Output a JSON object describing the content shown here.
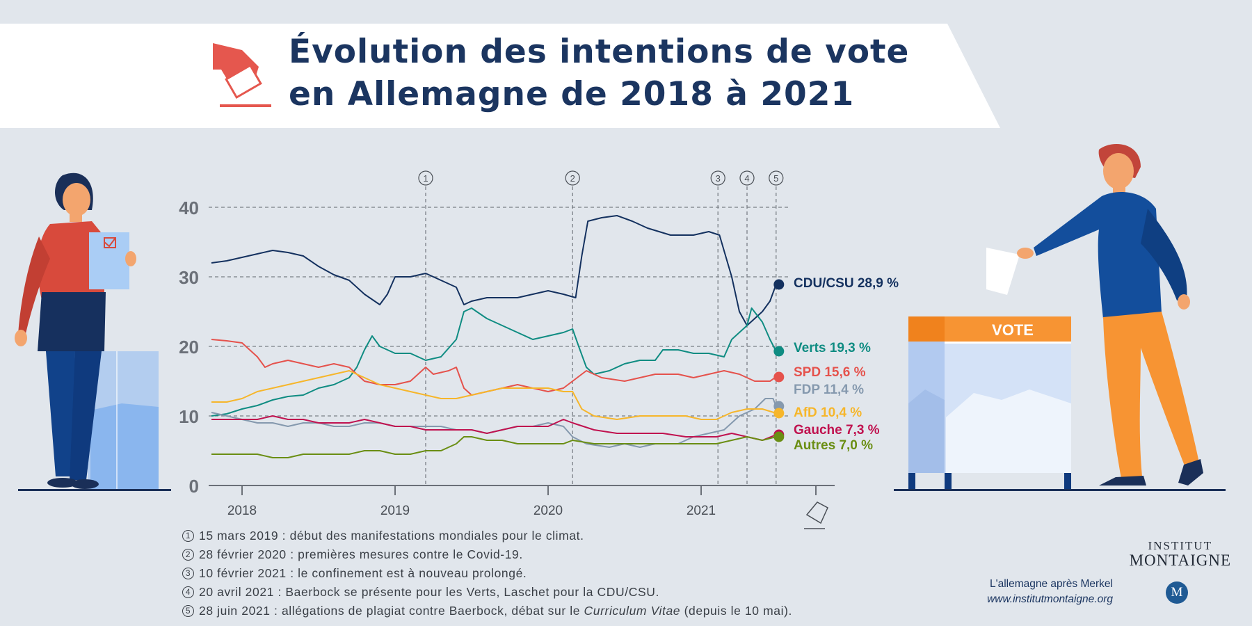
{
  "title_line1": "Évolution des intentions de vote",
  "title_line2": "en Allemagne de 2018 à 2021",
  "chart_data": {
    "type": "line",
    "x_unit": "year (decimal)",
    "xlim": [
      2017.8,
      2021.75
    ],
    "ylim": [
      0,
      42
    ],
    "x_ticks": [
      2018,
      2019,
      2020,
      2021
    ],
    "y_ticks": [
      0,
      10,
      20,
      30,
      40
    ],
    "gridlines_y": [
      10,
      20,
      30,
      40
    ],
    "events": [
      {
        "num": "1",
        "x": 2019.2
      },
      {
        "num": "2",
        "x": 2020.16
      },
      {
        "num": "3",
        "x": 2021.11
      },
      {
        "num": "4",
        "x": 2021.3
      },
      {
        "num": "5",
        "x": 2021.49
      }
    ],
    "series": [
      {
        "name": "CDU/CSU",
        "value_label": "28,9 %",
        "color": "#14315f",
        "points": [
          [
            2017.8,
            32
          ],
          [
            2017.9,
            32.3
          ],
          [
            2018.0,
            32.8
          ],
          [
            2018.1,
            33.3
          ],
          [
            2018.2,
            33.8
          ],
          [
            2018.3,
            33.5
          ],
          [
            2018.4,
            33
          ],
          [
            2018.5,
            31.5
          ],
          [
            2018.6,
            30.3
          ],
          [
            2018.7,
            29.5
          ],
          [
            2018.8,
            27.5
          ],
          [
            2018.9,
            26
          ],
          [
            2018.95,
            27.5
          ],
          [
            2019.0,
            30
          ],
          [
            2019.1,
            30
          ],
          [
            2019.2,
            30.5
          ],
          [
            2019.3,
            29.5
          ],
          [
            2019.4,
            28.5
          ],
          [
            2019.45,
            26
          ],
          [
            2019.5,
            26.5
          ],
          [
            2019.6,
            27
          ],
          [
            2019.7,
            27
          ],
          [
            2019.8,
            27
          ],
          [
            2019.9,
            27.5
          ],
          [
            2020.0,
            28
          ],
          [
            2020.1,
            27.5
          ],
          [
            2020.18,
            27
          ],
          [
            2020.22,
            33
          ],
          [
            2020.26,
            38
          ],
          [
            2020.35,
            38.5
          ],
          [
            2020.45,
            38.8
          ],
          [
            2020.55,
            38
          ],
          [
            2020.65,
            37
          ],
          [
            2020.8,
            36
          ],
          [
            2020.95,
            36
          ],
          [
            2021.05,
            36.5
          ],
          [
            2021.12,
            36
          ],
          [
            2021.2,
            30
          ],
          [
            2021.25,
            25
          ],
          [
            2021.3,
            23
          ],
          [
            2021.35,
            24
          ],
          [
            2021.4,
            25
          ],
          [
            2021.45,
            26.5
          ],
          [
            2021.49,
            28.9
          ]
        ]
      },
      {
        "name": "Verts",
        "value_label": "19,3 %",
        "color": "#0f8c82",
        "points": [
          [
            2017.8,
            10
          ],
          [
            2017.9,
            10.3
          ],
          [
            2018.0,
            11
          ],
          [
            2018.1,
            11.5
          ],
          [
            2018.2,
            12.3
          ],
          [
            2018.3,
            12.8
          ],
          [
            2018.4,
            13
          ],
          [
            2018.5,
            14
          ],
          [
            2018.6,
            14.5
          ],
          [
            2018.7,
            15.5
          ],
          [
            2018.75,
            17
          ],
          [
            2018.8,
            19.5
          ],
          [
            2018.85,
            21.5
          ],
          [
            2018.9,
            20
          ],
          [
            2019.0,
            19
          ],
          [
            2019.1,
            19
          ],
          [
            2019.2,
            18
          ],
          [
            2019.3,
            18.5
          ],
          [
            2019.4,
            21
          ],
          [
            2019.45,
            25
          ],
          [
            2019.5,
            25.5
          ],
          [
            2019.6,
            24
          ],
          [
            2019.7,
            23
          ],
          [
            2019.8,
            22
          ],
          [
            2019.9,
            21
          ],
          [
            2020.0,
            21.5
          ],
          [
            2020.1,
            22
          ],
          [
            2020.16,
            22.5
          ],
          [
            2020.2,
            20
          ],
          [
            2020.25,
            17
          ],
          [
            2020.3,
            16
          ],
          [
            2020.4,
            16.5
          ],
          [
            2020.5,
            17.5
          ],
          [
            2020.6,
            18
          ],
          [
            2020.7,
            18
          ],
          [
            2020.75,
            19.5
          ],
          [
            2020.85,
            19.5
          ],
          [
            2020.95,
            19
          ],
          [
            2021.05,
            19
          ],
          [
            2021.15,
            18.5
          ],
          [
            2021.2,
            21
          ],
          [
            2021.25,
            22
          ],
          [
            2021.3,
            23
          ],
          [
            2021.33,
            25.5
          ],
          [
            2021.4,
            23.5
          ],
          [
            2021.45,
            21
          ],
          [
            2021.49,
            19.3
          ]
        ]
      },
      {
        "name": "SPD",
        "value_label": "15,6 %",
        "color": "#e5524c",
        "points": [
          [
            2017.8,
            21
          ],
          [
            2017.9,
            20.8
          ],
          [
            2018.0,
            20.5
          ],
          [
            2018.05,
            19.5
          ],
          [
            2018.1,
            18.5
          ],
          [
            2018.15,
            17
          ],
          [
            2018.2,
            17.5
          ],
          [
            2018.3,
            18
          ],
          [
            2018.4,
            17.5
          ],
          [
            2018.5,
            17
          ],
          [
            2018.6,
            17.5
          ],
          [
            2018.7,
            17
          ],
          [
            2018.75,
            16
          ],
          [
            2018.8,
            15
          ],
          [
            2018.9,
            14.5
          ],
          [
            2019.0,
            14.5
          ],
          [
            2019.1,
            15
          ],
          [
            2019.2,
            17
          ],
          [
            2019.25,
            16
          ],
          [
            2019.35,
            16.5
          ],
          [
            2019.4,
            17
          ],
          [
            2019.45,
            14
          ],
          [
            2019.5,
            13
          ],
          [
            2019.6,
            13.5
          ],
          [
            2019.7,
            14
          ],
          [
            2019.8,
            14.5
          ],
          [
            2019.9,
            14
          ],
          [
            2020.0,
            13.5
          ],
          [
            2020.1,
            14
          ],
          [
            2020.16,
            15
          ],
          [
            2020.25,
            16.5
          ],
          [
            2020.35,
            15.5
          ],
          [
            2020.5,
            15
          ],
          [
            2020.6,
            15.5
          ],
          [
            2020.7,
            16
          ],
          [
            2020.85,
            16
          ],
          [
            2020.95,
            15.5
          ],
          [
            2021.05,
            16
          ],
          [
            2021.15,
            16.5
          ],
          [
            2021.25,
            16
          ],
          [
            2021.35,
            15
          ],
          [
            2021.45,
            15
          ],
          [
            2021.49,
            15.6
          ]
        ]
      },
      {
        "name": "FDP",
        "value_label": "11,4 %",
        "color": "#8599ae",
        "points": [
          [
            2017.8,
            10.5
          ],
          [
            2017.9,
            10
          ],
          [
            2018.0,
            9.5
          ],
          [
            2018.1,
            9
          ],
          [
            2018.2,
            9
          ],
          [
            2018.3,
            8.5
          ],
          [
            2018.4,
            9
          ],
          [
            2018.5,
            9
          ],
          [
            2018.6,
            8.5
          ],
          [
            2018.7,
            8.5
          ],
          [
            2018.8,
            9
          ],
          [
            2018.9,
            9
          ],
          [
            2019.0,
            8.5
          ],
          [
            2019.1,
            8.5
          ],
          [
            2019.2,
            8.5
          ],
          [
            2019.3,
            8.5
          ],
          [
            2019.4,
            8
          ],
          [
            2019.5,
            8
          ],
          [
            2019.6,
            7.5
          ],
          [
            2019.7,
            8
          ],
          [
            2019.8,
            8.5
          ],
          [
            2019.9,
            8.5
          ],
          [
            2020.0,
            9
          ],
          [
            2020.1,
            8.5
          ],
          [
            2020.16,
            7
          ],
          [
            2020.25,
            6
          ],
          [
            2020.4,
            5.5
          ],
          [
            2020.5,
            6
          ],
          [
            2020.6,
            5.5
          ],
          [
            2020.7,
            6
          ],
          [
            2020.85,
            6
          ],
          [
            2020.95,
            7
          ],
          [
            2021.05,
            7.5
          ],
          [
            2021.15,
            8
          ],
          [
            2021.25,
            10
          ],
          [
            2021.35,
            11
          ],
          [
            2021.42,
            12.5
          ],
          [
            2021.47,
            12.5
          ],
          [
            2021.49,
            11.4
          ]
        ]
      },
      {
        "name": "AfD",
        "value_label": "10,4 %",
        "color": "#f6b62b",
        "points": [
          [
            2017.8,
            12
          ],
          [
            2017.9,
            12
          ],
          [
            2018.0,
            12.5
          ],
          [
            2018.1,
            13.5
          ],
          [
            2018.2,
            14
          ],
          [
            2018.3,
            14.5
          ],
          [
            2018.4,
            15
          ],
          [
            2018.5,
            15.5
          ],
          [
            2018.6,
            16
          ],
          [
            2018.7,
            16.5
          ],
          [
            2018.8,
            15.5
          ],
          [
            2018.9,
            14.5
          ],
          [
            2019.0,
            14
          ],
          [
            2019.1,
            13.5
          ],
          [
            2019.2,
            13
          ],
          [
            2019.3,
            12.5
          ],
          [
            2019.4,
            12.5
          ],
          [
            2019.5,
            13
          ],
          [
            2019.6,
            13.5
          ],
          [
            2019.7,
            14
          ],
          [
            2019.8,
            14
          ],
          [
            2019.9,
            14
          ],
          [
            2020.0,
            14
          ],
          [
            2020.1,
            13.5
          ],
          [
            2020.16,
            13.5
          ],
          [
            2020.22,
            11
          ],
          [
            2020.3,
            10
          ],
          [
            2020.45,
            9.5
          ],
          [
            2020.6,
            10
          ],
          [
            2020.75,
            10
          ],
          [
            2020.9,
            10
          ],
          [
            2021.0,
            9.5
          ],
          [
            2021.1,
            9.5
          ],
          [
            2021.2,
            10.5
          ],
          [
            2021.3,
            11
          ],
          [
            2021.4,
            11
          ],
          [
            2021.49,
            10.4
          ]
        ]
      },
      {
        "name": "Gauche",
        "value_label": "7,3 %",
        "color": "#c0124f",
        "points": [
          [
            2017.8,
            9.5
          ],
          [
            2017.9,
            9.5
          ],
          [
            2018.0,
            9.5
          ],
          [
            2018.1,
            9.5
          ],
          [
            2018.2,
            10
          ],
          [
            2018.3,
            9.5
          ],
          [
            2018.4,
            9.5
          ],
          [
            2018.5,
            9
          ],
          [
            2018.6,
            9
          ],
          [
            2018.7,
            9
          ],
          [
            2018.8,
            9.5
          ],
          [
            2018.9,
            9
          ],
          [
            2019.0,
            8.5
          ],
          [
            2019.1,
            8.5
          ],
          [
            2019.2,
            8
          ],
          [
            2019.3,
            8
          ],
          [
            2019.4,
            8
          ],
          [
            2019.5,
            8
          ],
          [
            2019.6,
            7.5
          ],
          [
            2019.7,
            8
          ],
          [
            2019.8,
            8.5
          ],
          [
            2019.9,
            8.5
          ],
          [
            2020.0,
            8.5
          ],
          [
            2020.1,
            9.5
          ],
          [
            2020.16,
            9
          ],
          [
            2020.3,
            8
          ],
          [
            2020.45,
            7.5
          ],
          [
            2020.6,
            7.5
          ],
          [
            2020.75,
            7.5
          ],
          [
            2020.9,
            7
          ],
          [
            2021.0,
            7
          ],
          [
            2021.1,
            7
          ],
          [
            2021.2,
            7.5
          ],
          [
            2021.3,
            7
          ],
          [
            2021.4,
            6.5
          ],
          [
            2021.49,
            7.3
          ]
        ]
      },
      {
        "name": "Autres",
        "value_label": "7,0 %",
        "color": "#6a8e13",
        "points": [
          [
            2017.8,
            4.5
          ],
          [
            2017.9,
            4.5
          ],
          [
            2018.0,
            4.5
          ],
          [
            2018.1,
            4.5
          ],
          [
            2018.2,
            4
          ],
          [
            2018.3,
            4
          ],
          [
            2018.4,
            4.5
          ],
          [
            2018.5,
            4.5
          ],
          [
            2018.6,
            4.5
          ],
          [
            2018.7,
            4.5
          ],
          [
            2018.8,
            5
          ],
          [
            2018.9,
            5
          ],
          [
            2019.0,
            4.5
          ],
          [
            2019.1,
            4.5
          ],
          [
            2019.2,
            5
          ],
          [
            2019.3,
            5
          ],
          [
            2019.4,
            6
          ],
          [
            2019.45,
            7
          ],
          [
            2019.5,
            7
          ],
          [
            2019.6,
            6.5
          ],
          [
            2019.7,
            6.5
          ],
          [
            2019.8,
            6
          ],
          [
            2019.9,
            6
          ],
          [
            2020.0,
            6
          ],
          [
            2020.1,
            6
          ],
          [
            2020.16,
            6.5
          ],
          [
            2020.3,
            6
          ],
          [
            2020.45,
            6
          ],
          [
            2020.6,
            6
          ],
          [
            2020.75,
            6
          ],
          [
            2020.9,
            6
          ],
          [
            2021.0,
            6
          ],
          [
            2021.1,
            6
          ],
          [
            2021.2,
            6.5
          ],
          [
            2021.3,
            7
          ],
          [
            2021.4,
            6.5
          ],
          [
            2021.49,
            7
          ]
        ]
      }
    ]
  },
  "footnotes": [
    {
      "num": "1",
      "text": "15 mars 2019 : début des manifestations mondiales pour le climat."
    },
    {
      "num": "2",
      "text": "28 février 2020 : premières mesures contre le Covid-19."
    },
    {
      "num": "3",
      "text": "10 février 2021 : le confinement est à nouveau prolongé."
    },
    {
      "num": "4",
      "text": "20 avril 2021 : Baerbock se présente pour les Verts, Laschet pour la CDU/CSU."
    },
    {
      "num": "5",
      "text_before": "28 juin 2021 : allégations de plagiat contre Baerbock, débat sur le ",
      "text_italic": "Curriculum Vitae",
      "text_after": " (depuis le 10 mai)."
    }
  ],
  "ballot_box_label": "VOTE",
  "brand_top": "INSTITUT",
  "brand_main": "MONTAIGNE",
  "brand_logo_letter": "M",
  "tagline_title": "L'allemagne après Merkel",
  "tagline_url": "www.institutmontaigne.org"
}
